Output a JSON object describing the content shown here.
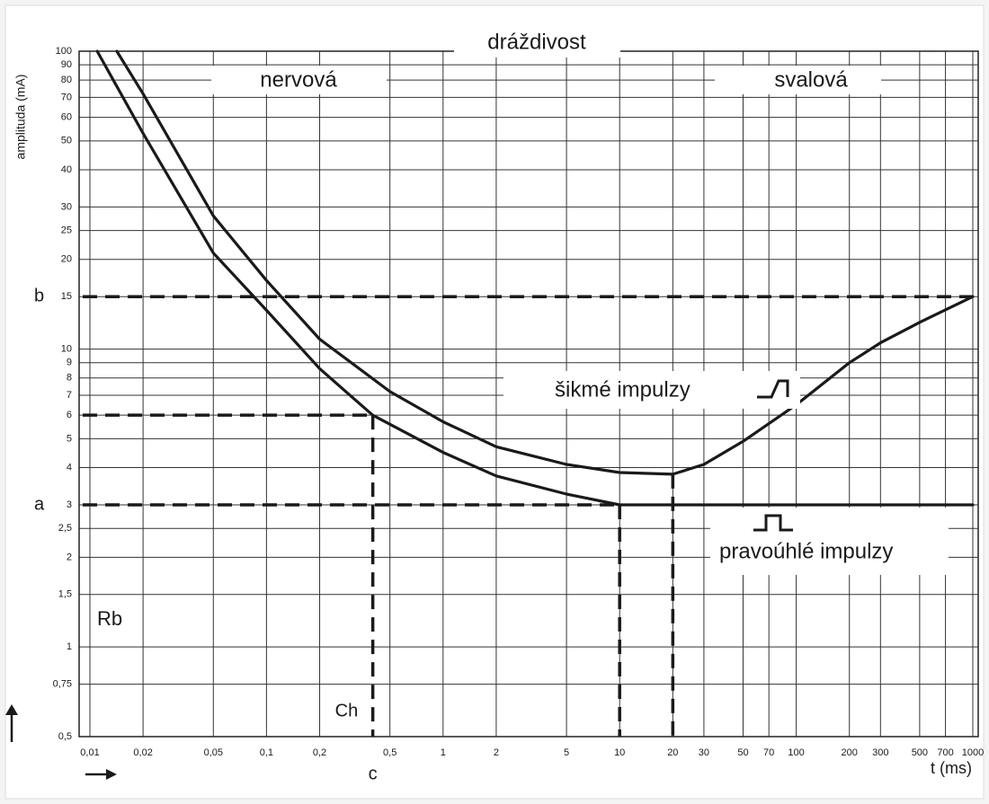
{
  "chart_data": {
    "type": "line",
    "title": "dráždivost",
    "region_labels": [
      "nervová",
      "svalová"
    ],
    "y_label": "amplituda (mA)",
    "x_label": "t (ms)",
    "log_x": true,
    "log_y": true,
    "grid": true,
    "xlim": [
      0.01,
      1000
    ],
    "ylim": [
      0.5,
      100
    ],
    "xticks": [
      {
        "value": 0.01,
        "label": "0,01"
      },
      {
        "value": 0.02,
        "label": "0,02"
      },
      {
        "value": 0.05,
        "label": "0,05"
      },
      {
        "value": 0.1,
        "label": "0,1"
      },
      {
        "value": 0.2,
        "label": "0,2"
      },
      {
        "value": 0.5,
        "label": "0,5"
      },
      1,
      2,
      5,
      10,
      20,
      30,
      50,
      70,
      100,
      200,
      300,
      500,
      700,
      1000
    ],
    "yticks": [
      100,
      90,
      80,
      70,
      60,
      50,
      40,
      30,
      25,
      20,
      15,
      10,
      9,
      8,
      7,
      6,
      5,
      4,
      3,
      {
        "value": 2.5,
        "label": "2,5"
      },
      2,
      {
        "value": 1.5,
        "label": "1,5"
      },
      1,
      {
        "value": 0.75,
        "label": "0,75"
      },
      {
        "value": 0.5,
        "label": "0,5"
      }
    ],
    "series": [
      {
        "name": "šikmé impulzy",
        "color": "#1a1a1a",
        "x": [
          0.0142,
          0.02,
          0.05,
          0.1,
          0.2,
          0.5,
          1,
          2,
          5,
          10,
          20,
          30,
          50,
          100,
          200,
          300,
          500,
          1000
        ],
        "values": [
          100,
          72,
          28,
          17,
          10.8,
          7.2,
          5.7,
          4.7,
          4.1,
          3.85,
          3.8,
          4.1,
          4.9,
          6.5,
          9,
          10.5,
          12.3,
          15
        ]
      },
      {
        "name": "pravoúhlé impulzy",
        "color": "#1a1a1a",
        "x": [
          0.011,
          0.02,
          0.05,
          0.1,
          0.2,
          0.4,
          1,
          2,
          5,
          10,
          100,
          1000
        ],
        "values": [
          100,
          53,
          21,
          13.5,
          8.6,
          6,
          4.5,
          3.75,
          3.26,
          3,
          3,
          3
        ]
      }
    ],
    "level_markers": [
      {
        "label": "b",
        "value": 15
      },
      {
        "label": "a",
        "value": 3
      }
    ],
    "rheobase_label": "Rb",
    "chronaxie": {
      "label": "Ch",
      "axis_label": "c",
      "x": 0.4,
      "y": 6
    },
    "dashed_verticals": [
      {
        "x": 10,
        "y": 3
      },
      {
        "x": 20,
        "y": 3.8
      }
    ]
  }
}
